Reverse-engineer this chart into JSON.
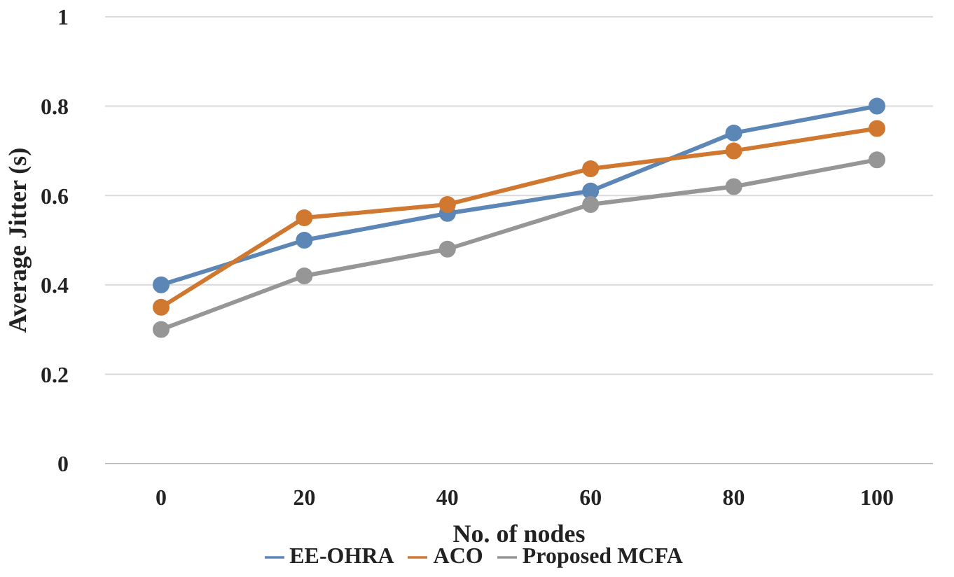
{
  "chart_data": {
    "type": "line",
    "xlabel": "No. of nodes",
    "ylabel": "Average Jitter (s)",
    "categories": [
      "0",
      "20",
      "40",
      "60",
      "80",
      "100"
    ],
    "series": [
      {
        "name": "EE-OHRA",
        "color": "#5b86b6",
        "values": [
          0.4,
          0.5,
          0.56,
          0.61,
          0.74,
          0.8
        ]
      },
      {
        "name": "ACO",
        "color": "#d0782f",
        "values": [
          0.35,
          0.55,
          0.58,
          0.66,
          0.7,
          0.75
        ]
      },
      {
        "name": "Proposed MCFA",
        "color": "#969696",
        "values": [
          0.3,
          0.42,
          0.48,
          0.58,
          0.62,
          0.68
        ]
      }
    ],
    "ylim": [
      0,
      1
    ],
    "yticks": [
      0,
      0.2,
      0.4,
      0.6,
      0.8,
      1
    ],
    "grid": "y",
    "legend": "bottom",
    "marker": "circle",
    "line_style": "solid"
  }
}
